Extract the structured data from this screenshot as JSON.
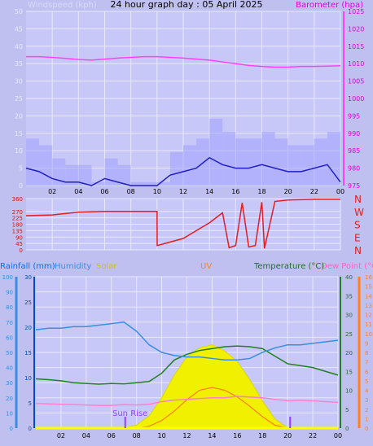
{
  "top": {
    "title": "24 hour graph day : 05 April 2025",
    "left_label": "Windspeed (kph)",
    "right_label": "Barometer (hpa)",
    "left_axis": {
      "min": 0,
      "max": 50,
      "ticks": [
        0,
        5,
        10,
        15,
        20,
        25,
        30,
        35,
        40,
        45,
        50
      ]
    },
    "right_axis": {
      "min": 975,
      "max": 1025,
      "ticks": [
        975,
        980,
        985,
        990,
        995,
        1000,
        1005,
        1010,
        1015,
        1020,
        1025
      ]
    },
    "x_ticks": [
      "02",
      "04",
      "06",
      "08",
      "10",
      "12",
      "14",
      "16",
      "18",
      "20",
      "22",
      "00"
    ]
  },
  "direction": {
    "left_ticks": [
      0,
      45,
      90,
      135,
      180,
      225,
      270,
      360
    ],
    "right_labels": [
      "N",
      "W",
      "S",
      "E",
      "N"
    ]
  },
  "bottom": {
    "labels": {
      "rainfall": "Rainfall (mm)",
      "humidity": "Humidity",
      "solar": "Solar",
      "uv": "UV",
      "temperature": "Temperature (°C)",
      "dewpoint": "Dew Point (°C)"
    },
    "humidity_axis": [
      0,
      10,
      20,
      30,
      40,
      50,
      60,
      70,
      80,
      90,
      100
    ],
    "rain_axis": [
      0,
      5,
      10,
      15,
      20,
      25,
      30
    ],
    "temp_axis": [
      0,
      5,
      10,
      15,
      20,
      25,
      30,
      35,
      40
    ],
    "uv_axis": [
      0,
      1,
      2,
      3,
      4,
      5,
      6,
      7,
      8,
      9,
      10,
      11,
      12,
      13,
      14,
      15,
      16
    ],
    "sunrise_label": "Sun Rise",
    "x_ticks": [
      "02",
      "04",
      "06",
      "08",
      "10",
      "12",
      "14",
      "16",
      "18",
      "20",
      "22",
      "00"
    ]
  },
  "colors": {
    "windspeed": "#2020c0",
    "gust": "#a0a0ff",
    "barometer": "#ff40ff",
    "direction": "#e02020",
    "humidity": "#3a8ee0",
    "temperature": "#208020",
    "dewpoint": "#ff80d0",
    "solar": "#f0f000",
    "uv": "#ff8020",
    "rainfall": "#0070ff",
    "sun": "#9040ff"
  },
  "chart_data": [
    {
      "type": "line",
      "title": "24 hour graph day : 05 April 2025",
      "xlabel": "",
      "ylabel": "Windspeed (kph)",
      "y2label": "Barometer (hpa)",
      "x": [
        0,
        1,
        2,
        3,
        4,
        5,
        6,
        7,
        8,
        9,
        10,
        11,
        12,
        13,
        14,
        15,
        16,
        17,
        18,
        19,
        20,
        21,
        22,
        23,
        24
      ],
      "ylim": [
        0,
        50
      ],
      "y2lim": [
        975,
        1025
      ],
      "series": [
        {
          "name": "Windspeed (kph)",
          "values": [
            5,
            4,
            2,
            1,
            1,
            0,
            2,
            1,
            0,
            0,
            0,
            3,
            4,
            5,
            8,
            6,
            5,
            5,
            6,
            5,
            4,
            4,
            5,
            6,
            1
          ]
        },
        {
          "name": "Barometer (hpa)",
          "axis": "right",
          "values": [
            1012,
            1012,
            1011.8,
            1011.5,
            1011.2,
            1011,
            1011.3,
            1011.6,
            1011.8,
            1012,
            1012,
            1011.8,
            1011.6,
            1011.3,
            1011,
            1010.5,
            1010,
            1009.5,
            1009.2,
            1009,
            1009,
            1009.2,
            1009.2,
            1009.3,
            1009.4
          ]
        }
      ]
    },
    {
      "type": "line",
      "title": "",
      "ylabel": "",
      "x": [
        0,
        2,
        4,
        6,
        8,
        10,
        10.01,
        12,
        14,
        15,
        15.5,
        16,
        16.5,
        17,
        17.5,
        18,
        18.2,
        19,
        20,
        22,
        24
      ],
      "ylim": [
        0,
        360
      ],
      "series": [
        {
          "name": "",
          "values": [
            240,
            245,
            265,
            270,
            270,
            270,
            30,
            80,
            190,
            260,
            15,
            30,
            330,
            20,
            30,
            335,
            10,
            340,
            350,
            355,
            355
          ]
        }
      ]
    },
    {
      "type": "area",
      "title": "",
      "x": [
        0,
        1,
        2,
        3,
        4,
        5,
        6,
        7,
        8,
        9,
        10,
        11,
        12,
        13,
        14,
        15,
        16,
        17,
        18,
        19,
        20,
        21,
        22,
        23,
        24
      ],
      "series": [
        {
          "name": "Humidity",
          "axis": "humidity",
          "values": [
            65,
            66,
            66,
            67,
            67,
            68,
            69,
            70,
            64,
            55,
            50,
            48,
            47,
            47,
            46,
            45,
            45,
            46,
            50,
            53,
            55,
            55,
            56,
            57,
            58
          ]
        },
        {
          "name": "Temperature (°C)",
          "axis": "temperature",
          "values": [
            13,
            12.8,
            12.5,
            12,
            11.8,
            11.6,
            11.8,
            11.7,
            12,
            12.3,
            14.5,
            18,
            19.5,
            20.5,
            21,
            21.5,
            21.7,
            21.5,
            21,
            19,
            17,
            16.5,
            16,
            15,
            14
          ]
        },
        {
          "name": "Dew Point (°C)",
          "axis": "temperature",
          "values": [
            6.5,
            6.4,
            6.3,
            6.2,
            6.1,
            6,
            6,
            6.2,
            6.1,
            6.3,
            7,
            7.4,
            7.6,
            7.8,
            8,
            8,
            8.4,
            8.2,
            8,
            7.6,
            7.2,
            7.3,
            7.2,
            7,
            6.8
          ]
        },
        {
          "name": "Solar",
          "axis": "humidity",
          "values": [
            0,
            0,
            0,
            0,
            0,
            0,
            0,
            0,
            2,
            8,
            20,
            35,
            47,
            53,
            55,
            51,
            44,
            32,
            18,
            6,
            0,
            0,
            0,
            0,
            0
          ]
        },
        {
          "name": "UV",
          "axis": "uv",
          "values": [
            0,
            0,
            0,
            0,
            0,
            0,
            0,
            0,
            0,
            0.2,
            0.8,
            1.8,
            3,
            4,
            4.3,
            4,
            3.3,
            2.3,
            1.2,
            0.3,
            0,
            0,
            0,
            0,
            0
          ]
        },
        {
          "name": "Rainfall (mm)",
          "axis": "rain",
          "values": [
            0,
            0,
            0,
            0,
            0,
            0,
            0,
            0,
            0,
            0,
            0,
            0,
            0,
            0,
            0,
            0,
            0,
            0,
            0,
            0,
            0,
            0,
            0,
            0,
            0
          ]
        }
      ]
    }
  ]
}
